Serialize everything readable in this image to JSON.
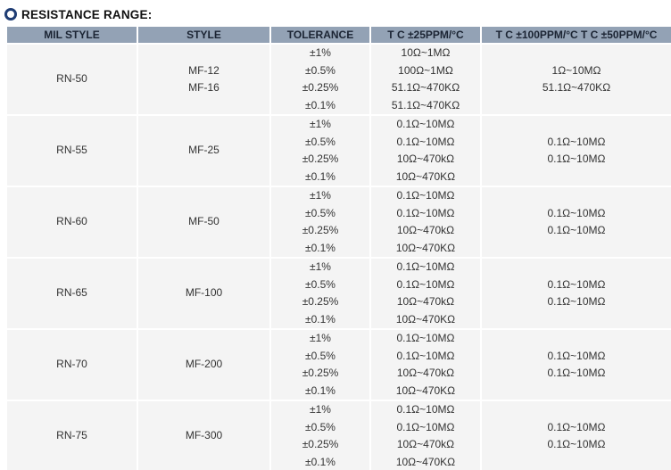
{
  "page": {
    "title": "RESISTANCE RANGE:"
  },
  "table": {
    "headers": [
      "MIL STYLE",
      "STYLE",
      "TOLERANCE",
      "T C ±25PPM/°C",
      "T C ±100PPM/°C T C ±50PPM/°C"
    ],
    "rows": [
      {
        "mil_style": "RN-50",
        "styles": [
          "MF-12",
          "MF-16"
        ],
        "tolerances": [
          "±1%",
          "±0.5%",
          "±0.25%",
          "±0.1%"
        ],
        "tc_25ppm": [
          "10Ω~1MΩ",
          "100Ω~1MΩ",
          "51.1Ω~470KΩ",
          "51.1Ω~470KΩ"
        ],
        "tc_100_50ppm": [
          "1Ω~10MΩ",
          "51.1Ω~470KΩ"
        ]
      },
      {
        "mil_style": "RN-55",
        "styles": [
          "MF-25"
        ],
        "tolerances": [
          "±1%",
          "±0.5%",
          "±0.25%",
          "±0.1%"
        ],
        "tc_25ppm": [
          "0.1Ω~10MΩ",
          "0.1Ω~10MΩ",
          "10Ω~470kΩ",
          "10Ω~470KΩ"
        ],
        "tc_100_50ppm": [
          "0.1Ω~10MΩ",
          "0.1Ω~10MΩ"
        ]
      },
      {
        "mil_style": "RN-60",
        "styles": [
          "MF-50"
        ],
        "tolerances": [
          "±1%",
          "±0.5%",
          "±0.25%",
          "±0.1%"
        ],
        "tc_25ppm": [
          "0.1Ω~10MΩ",
          "0.1Ω~10MΩ",
          "10Ω~470kΩ",
          "10Ω~470KΩ"
        ],
        "tc_100_50ppm": [
          "0.1Ω~10MΩ",
          "0.1Ω~10MΩ"
        ]
      },
      {
        "mil_style": "RN-65",
        "styles": [
          "MF-100"
        ],
        "tolerances": [
          "±1%",
          "±0.5%",
          "±0.25%",
          "±0.1%"
        ],
        "tc_25ppm": [
          "0.1Ω~10MΩ",
          "0.1Ω~10MΩ",
          "10Ω~470kΩ",
          "10Ω~470KΩ"
        ],
        "tc_100_50ppm": [
          "0.1Ω~10MΩ",
          "0.1Ω~10MΩ"
        ]
      },
      {
        "mil_style": "RN-70",
        "styles": [
          "MF-200"
        ],
        "tolerances": [
          "±1%",
          "±0.5%",
          "±0.25%",
          "±0.1%"
        ],
        "tc_25ppm": [
          "0.1Ω~10MΩ",
          "0.1Ω~10MΩ",
          "10Ω~470kΩ",
          "10Ω~470KΩ"
        ],
        "tc_100_50ppm": [
          "0.1Ω~10MΩ",
          "0.1Ω~10MΩ"
        ]
      },
      {
        "mil_style": "RN-75",
        "styles": [
          "MF-300"
        ],
        "tolerances": [
          "±1%",
          "±0.5%",
          "±0.25%",
          "±0.1%"
        ],
        "tc_25ppm": [
          "0.1Ω~10MΩ",
          "0.1Ω~10MΩ",
          "10Ω~470kΩ",
          "10Ω~470KΩ"
        ],
        "tc_100_50ppm": [
          "0.1Ω~10MΩ",
          "0.1Ω~10MΩ"
        ]
      }
    ]
  },
  "colors": {
    "header_bg": "#93a2b5",
    "header_text": "#1b2433",
    "row_bg": "#f4f4f4",
    "body_text": "#333333",
    "title_text": "#111111",
    "accent_ring": "#1f3d74"
  }
}
